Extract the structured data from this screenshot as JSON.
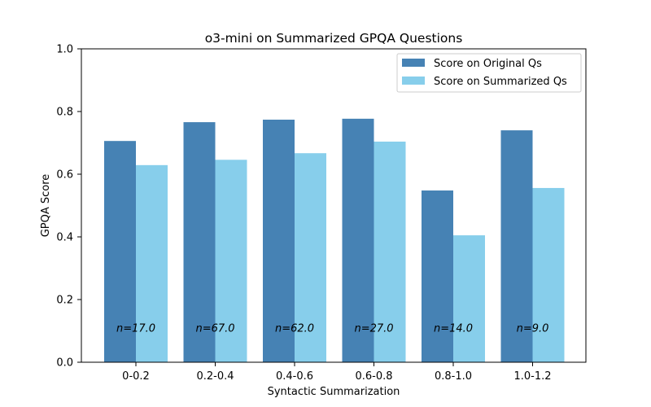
{
  "chart_data": {
    "type": "bar",
    "title": "o3-mini on Summarized GPQA Questions",
    "xlabel": "Syntactic Summarization",
    "ylabel": "GPQA Score",
    "ylim": [
      0,
      1.0
    ],
    "yticks": [
      "0.0",
      "0.2",
      "0.4",
      "0.6",
      "0.8",
      "1.0"
    ],
    "categories": [
      "0-0.2",
      "0.2-0.4",
      "0.4-0.6",
      "0.6-0.8",
      "0.8-1.0",
      "1.0-1.2"
    ],
    "series": [
      {
        "name": "Score on Original Qs",
        "color": "#4682b4",
        "values": [
          0.706,
          0.766,
          0.774,
          0.777,
          0.548,
          0.74
        ]
      },
      {
        "name": "Score on Summarized Qs",
        "color": "#87ceeb",
        "values": [
          0.629,
          0.646,
          0.667,
          0.704,
          0.405,
          0.556
        ]
      }
    ],
    "annotations": [
      "n=17.0",
      "n=67.0",
      "n=62.0",
      "n=27.0",
      "n=14.0",
      "n=9.0"
    ],
    "annotation_y": 0.11,
    "legend_position": "top-right",
    "grid": false
  }
}
